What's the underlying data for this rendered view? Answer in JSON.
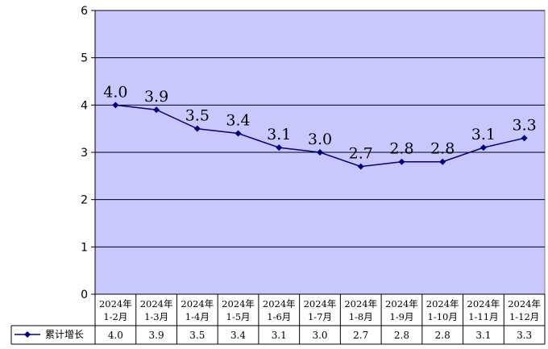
{
  "chart_data": {
    "type": "line",
    "categories": [
      [
        "2024年",
        "1-2月"
      ],
      [
        "2024年",
        "1-3月"
      ],
      [
        "2024年",
        "1-4月"
      ],
      [
        "2024年",
        "1-5月"
      ],
      [
        "2024年",
        "1-6月"
      ],
      [
        "2024年",
        "1-7月"
      ],
      [
        "2024年",
        "1-8月"
      ],
      [
        "2024年",
        "1-9月"
      ],
      [
        "2024年",
        "1-10月"
      ],
      [
        "2024年",
        "1-11月"
      ],
      [
        "2024年",
        "1-12月"
      ]
    ],
    "series": [
      {
        "name": "累计增长",
        "values": [
          4.0,
          3.9,
          3.5,
          3.4,
          3.1,
          3.0,
          2.7,
          2.8,
          2.8,
          3.1,
          3.3
        ],
        "labels": [
          "4.0",
          "3.9",
          "3.5",
          "3.4",
          "3.1",
          "3.0",
          "2.7",
          "2.8",
          "2.8",
          "3.1",
          "3.3"
        ]
      }
    ],
    "ylim": [
      0,
      6
    ],
    "yticks": [
      0,
      1,
      2,
      3,
      4,
      5,
      6
    ],
    "grid": "horizontal",
    "data_table": true,
    "legend": "data-table-left",
    "colors": {
      "plot_bg": "#c8c8ff",
      "line": "#000080",
      "grid": "#000000"
    }
  }
}
